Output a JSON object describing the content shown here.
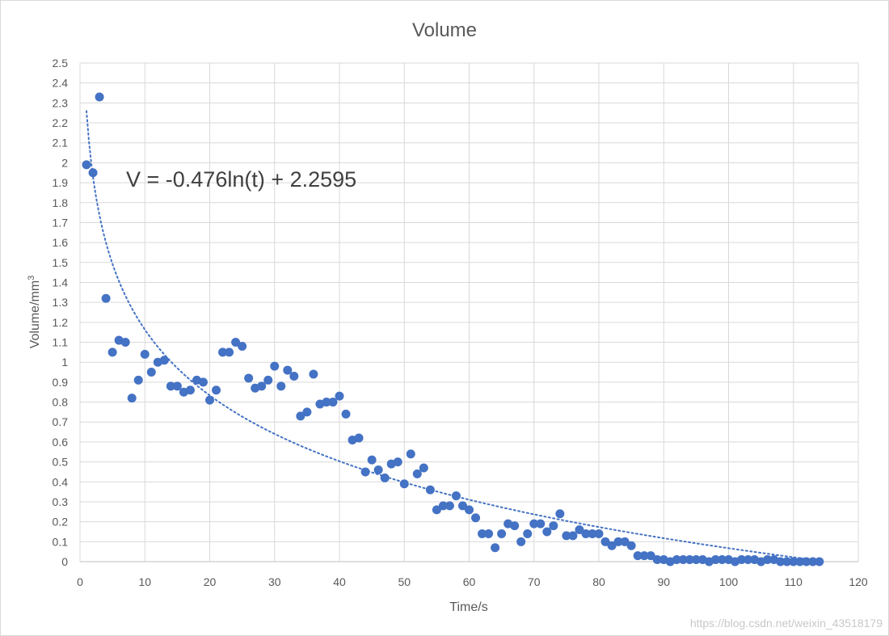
{
  "chart_data": {
    "type": "scatter",
    "title": "Volume",
    "xlabel": "Time/s",
    "ylabel_base": "Volume/mm",
    "ylabel_sup": "3",
    "xlim": [
      0,
      120
    ],
    "ylim": [
      0,
      2.5
    ],
    "x_ticks": [
      0,
      10,
      20,
      30,
      40,
      50,
      60,
      70,
      80,
      90,
      100,
      110,
      120
    ],
    "y_ticks": [
      "0",
      "0.1",
      "0.2",
      "0.3",
      "0.4",
      "0.5",
      "0.6",
      "0.7",
      "0.8",
      "0.9",
      "1",
      "1.1",
      "1.2",
      "1.3",
      "1.4",
      "1.5",
      "1.6",
      "1.7",
      "1.8",
      "1.9",
      "2",
      "2.1",
      "2.2",
      "2.3",
      "2.4",
      "2.5"
    ],
    "grid": true,
    "legend": "none",
    "marker_color": "#4472c4",
    "trendline": {
      "type": "logarithmic",
      "a": -0.476,
      "b": 2.2595,
      "x_range": [
        1,
        114
      ],
      "style": "dotted",
      "color": "#4472c4",
      "equation": "V = -0.476ln(t) + 2.2595"
    },
    "points": [
      [
        1,
        1.99
      ],
      [
        2,
        1.95
      ],
      [
        3,
        2.33
      ],
      [
        4,
        1.32
      ],
      [
        5,
        1.05
      ],
      [
        6,
        1.11
      ],
      [
        7,
        1.1
      ],
      [
        8,
        0.82
      ],
      [
        9,
        0.91
      ],
      [
        10,
        1.04
      ],
      [
        11,
        0.95
      ],
      [
        12,
        1.0
      ],
      [
        13,
        1.01
      ],
      [
        14,
        0.88
      ],
      [
        15,
        0.88
      ],
      [
        16,
        0.85
      ],
      [
        17,
        0.86
      ],
      [
        18,
        0.91
      ],
      [
        19,
        0.9
      ],
      [
        20,
        0.81
      ],
      [
        21,
        0.86
      ],
      [
        22,
        1.05
      ],
      [
        23,
        1.05
      ],
      [
        24,
        1.1
      ],
      [
        25,
        1.08
      ],
      [
        26,
        0.92
      ],
      [
        27,
        0.87
      ],
      [
        28,
        0.88
      ],
      [
        29,
        0.91
      ],
      [
        30,
        0.98
      ],
      [
        31,
        0.88
      ],
      [
        32,
        0.96
      ],
      [
        33,
        0.93
      ],
      [
        34,
        0.73
      ],
      [
        35,
        0.75
      ],
      [
        36,
        0.94
      ],
      [
        37,
        0.79
      ],
      [
        38,
        0.8
      ],
      [
        39,
        0.8
      ],
      [
        40,
        0.83
      ],
      [
        41,
        0.74
      ],
      [
        42,
        0.61
      ],
      [
        43,
        0.62
      ],
      [
        44,
        0.45
      ],
      [
        45,
        0.51
      ],
      [
        46,
        0.46
      ],
      [
        47,
        0.42
      ],
      [
        48,
        0.49
      ],
      [
        49,
        0.5
      ],
      [
        50,
        0.39
      ],
      [
        51,
        0.54
      ],
      [
        52,
        0.44
      ],
      [
        53,
        0.47
      ],
      [
        54,
        0.36
      ],
      [
        55,
        0.26
      ],
      [
        56,
        0.28
      ],
      [
        57,
        0.28
      ],
      [
        58,
        0.33
      ],
      [
        59,
        0.28
      ],
      [
        60,
        0.26
      ],
      [
        61,
        0.22
      ],
      [
        62,
        0.14
      ],
      [
        63,
        0.14
      ],
      [
        64,
        0.07
      ],
      [
        65,
        0.14
      ],
      [
        66,
        0.19
      ],
      [
        67,
        0.18
      ],
      [
        68,
        0.1
      ],
      [
        69,
        0.14
      ],
      [
        70,
        0.19
      ],
      [
        71,
        0.19
      ],
      [
        72,
        0.15
      ],
      [
        73,
        0.18
      ],
      [
        74,
        0.24
      ],
      [
        75,
        0.13
      ],
      [
        76,
        0.13
      ],
      [
        77,
        0.16
      ],
      [
        78,
        0.14
      ],
      [
        79,
        0.14
      ],
      [
        80,
        0.14
      ],
      [
        81,
        0.1
      ],
      [
        82,
        0.08
      ],
      [
        83,
        0.1
      ],
      [
        84,
        0.1
      ],
      [
        85,
        0.08
      ],
      [
        86,
        0.03
      ],
      [
        87,
        0.03
      ],
      [
        88,
        0.03
      ],
      [
        89,
        0.01
      ],
      [
        90,
        0.01
      ],
      [
        91,
        0.0
      ],
      [
        92,
        0.01
      ],
      [
        93,
        0.01
      ],
      [
        94,
        0.01
      ],
      [
        95,
        0.01
      ],
      [
        96,
        0.01
      ],
      [
        97,
        0.0
      ],
      [
        98,
        0.01
      ],
      [
        99,
        0.01
      ],
      [
        100,
        0.01
      ],
      [
        101,
        0.0
      ],
      [
        102,
        0.01
      ],
      [
        103,
        0.01
      ],
      [
        104,
        0.01
      ],
      [
        105,
        0.0
      ],
      [
        106,
        0.01
      ],
      [
        107,
        0.01
      ],
      [
        108,
        0.0
      ],
      [
        109,
        0.0
      ],
      [
        110,
        0.0
      ],
      [
        111,
        0.0
      ],
      [
        112,
        0.0
      ],
      [
        113,
        0.0
      ],
      [
        114,
        0.0
      ]
    ]
  },
  "watermark": "https://blog.csdn.net/weixin_43518179"
}
